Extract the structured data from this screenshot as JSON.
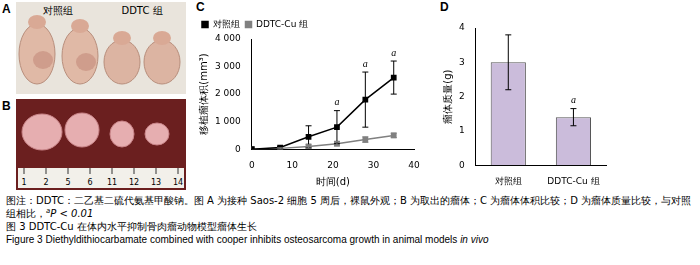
{
  "chart_data": [
    {
      "panel": "C",
      "type": "line",
      "x": [
        0,
        7,
        14,
        21,
        28,
        35
      ],
      "series": [
        {
          "name": "对照组",
          "color": "#000000",
          "marker": "square",
          "line_style": "solid",
          "values": [
            0,
            60,
            450,
            800,
            1800,
            2600
          ],
          "errors": [
            0,
            40,
            400,
            600,
            1000,
            600
          ]
        },
        {
          "name": "DDTC-Cu 组",
          "color": "#808080",
          "marker": "square",
          "line_style": "solid",
          "values": [
            0,
            30,
            100,
            200,
            350,
            500
          ],
          "errors": [
            0,
            20,
            60,
            80,
            100,
            80
          ]
        }
      ],
      "x_label": "时间(d)",
      "y_label": "移植瘤体积(mm³)",
      "xlim": [
        0,
        40
      ],
      "xticks": [
        0,
        10,
        20,
        30,
        40
      ],
      "ylim": [
        0,
        4000
      ],
      "yticks": [
        0,
        {
          "value": 1000,
          "label": "1 000"
        },
        {
          "value": 2000,
          "label": "2 000"
        },
        {
          "value": 3000,
          "label": "3 000"
        },
        {
          "value": 4000,
          "label": "4 000"
        }
      ],
      "grid": false,
      "legend": "top",
      "annotations": [
        {
          "text": "a",
          "x": 21
        },
        {
          "text": "a",
          "x": 28
        },
        {
          "text": "a",
          "x": 35
        }
      ]
    },
    {
      "panel": "D",
      "type": "bar",
      "categories": [
        "对照组",
        "DDTC-Cu 组"
      ],
      "values": [
        3.0,
        1.4
      ],
      "errors": [
        0.8,
        0.25
      ],
      "color": "#cbbcdb",
      "y_label": "瘤体质量(g)",
      "ylim": [
        0,
        4
      ],
      "yticks": [
        0,
        1,
        2,
        3,
        4
      ],
      "grid": false,
      "annotations": [
        {
          "text": "a",
          "category": "DDTC-Cu 组"
        }
      ]
    }
  ],
  "photos": {
    "A": {
      "panel": "A",
      "labels": [
        "对照组",
        "DDTC 组"
      ]
    },
    "B": {
      "panel": "B",
      "ruler": [
        "1",
        "2",
        "5",
        "6",
        "11",
        "12",
        "13",
        "14"
      ]
    }
  },
  "caption": {
    "note": "图注：DDTC：二乙基二硫代氨基甲酸钠。图 A 为接种 Saos-2 细胞 5 周后，裸鼠外观；B 为取出的瘤体；C 为瘤体体积比较；D 为瘤体质量比较，与对照组相比，",
    "note_sup": "a",
    "note_end": "P < 0.01",
    "title_cn": "图 3  DDTC-Cu 在体内水平抑制骨肉瘤动物模型瘤体生长",
    "title_en": "Figure 3  Diethyldithiocarbamate combined with cooper inhibits osteosarcoma growth in animal models ",
    "title_en_italic": "in vivo"
  }
}
